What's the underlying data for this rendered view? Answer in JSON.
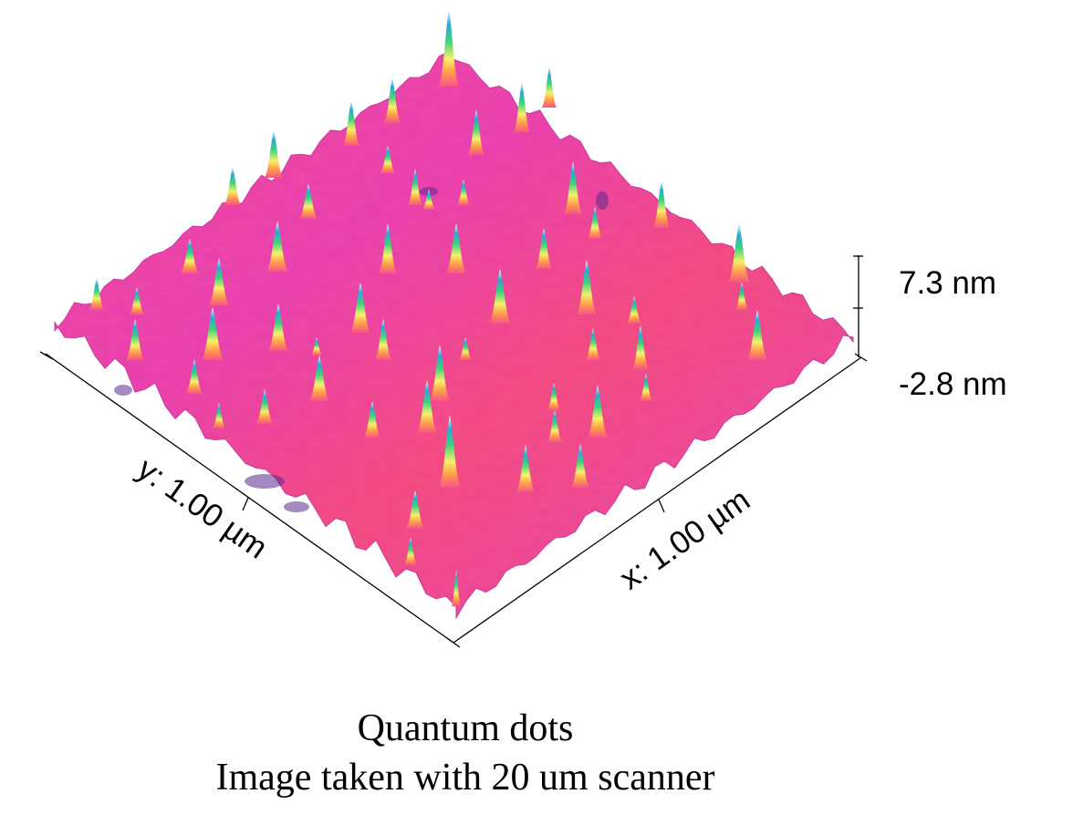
{
  "image": {
    "subject": "3D afm-surface",
    "surface_color": "#ee3a8f",
    "peak_colors": [
      "#f7f36a",
      "#2fd07f",
      "#2bb0d0",
      "#ffffff"
    ]
  },
  "axes": {
    "x_label": "x: 1.00 µm",
    "y_label": "y: 1.00 µm",
    "z_max_label": "7.3 nm",
    "z_min_label": "-2.8 nm"
  },
  "caption": {
    "line1": "Quantum dots",
    "line2": "Image taken with 20 um scanner"
  }
}
